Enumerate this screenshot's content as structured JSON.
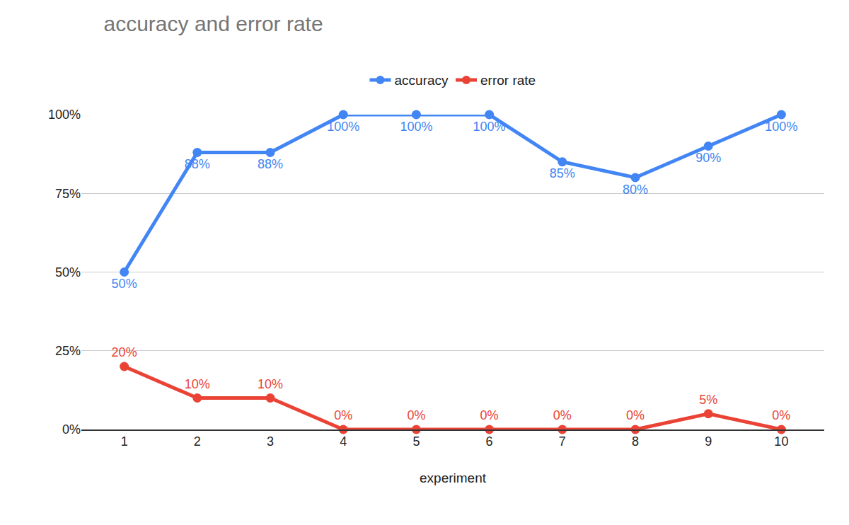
{
  "chart_data": {
    "type": "line",
    "title": "accuracy and error rate",
    "x_label": "experiment",
    "categories": [
      "1",
      "2",
      "3",
      "4",
      "5",
      "6",
      "7",
      "8",
      "9",
      "10"
    ],
    "series": [
      {
        "name": "accuracy",
        "color": "#4285f4",
        "marker": "circle",
        "values": [
          50,
          88,
          88,
          100,
          100,
          100,
          85,
          80,
          90,
          100
        ],
        "value_labels": [
          "50%",
          "88%",
          "88%",
          "100%",
          "100%",
          "100%",
          "85%",
          "80%",
          "90%",
          "100%"
        ]
      },
      {
        "name": "error rate",
        "color": "#ea4335",
        "marker": "circle",
        "values": [
          20,
          10,
          10,
          0,
          0,
          0,
          0,
          0,
          5,
          0
        ],
        "value_labels": [
          "20%",
          "10%",
          "10%",
          "0%",
          "0%",
          "0%",
          "0%",
          "0%",
          "5%",
          "0%"
        ]
      }
    ],
    "ylim": [
      0,
      100
    ],
    "yticks": [
      {
        "value": 0,
        "label": "0%"
      },
      {
        "value": 25,
        "label": "25%"
      },
      {
        "value": 50,
        "label": "50%"
      },
      {
        "value": 75,
        "label": "75%"
      },
      {
        "value": 100,
        "label": "100%"
      }
    ],
    "grid": true,
    "legend": "top",
    "data_labels": true
  }
}
